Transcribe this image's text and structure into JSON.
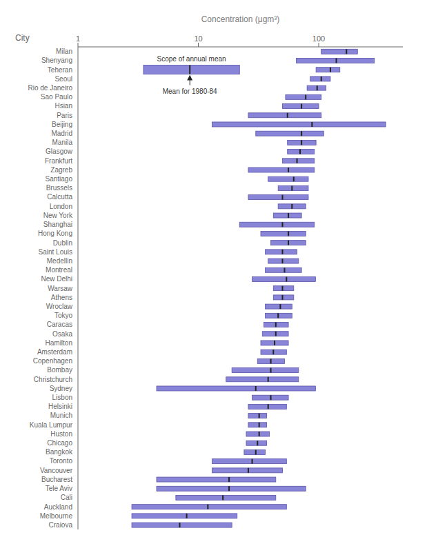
{
  "chart_data": {
    "type": "bar",
    "orientation": "horizontal",
    "xlabel": "Concentration (μgm³)",
    "ylabel": "City",
    "categories": [
      "Milan",
      "Shenyang",
      "Teheran",
      "Seoul",
      "Rio de Janeiro",
      "Sao Paulo",
      "Hsian",
      "Paris",
      "Beijing",
      "Madrid",
      "Manila",
      "Glasgow",
      "Frankfurt",
      "Zagreb",
      "Santiago",
      "Brussels",
      "Calcutta",
      "London",
      "New York",
      "Shanghai",
      "Hong Kong",
      "Dublin",
      "Saint Louis",
      "Medellin",
      "Montreal",
      "New Delhi",
      "Warsaw",
      "Athens",
      "Wroclaw",
      "Tokyo",
      "Caracas",
      "Osaka",
      "Hamilton",
      "Amsterdam",
      "Copenhagen",
      "Bombay",
      "Christchurch",
      "Sydney",
      "Lisbon",
      "Helsinki",
      "Munich",
      "Kuala Lumpur",
      "Huston",
      "Chicago",
      "Bangkok",
      "Toronto",
      "Vancouver",
      "Bucharest",
      "Tele Aviv",
      "Cali",
      "Auckland",
      "Melbourne",
      "Craiova"
    ],
    "values": [
      [
        105,
        210
      ],
      [
        65,
        290
      ],
      [
        95,
        150
      ],
      [
        85,
        125
      ],
      [
        80,
        115
      ],
      [
        53,
        105
      ],
      [
        50,
        100
      ],
      [
        26,
        105
      ],
      [
        13,
        360
      ],
      [
        30,
        110
      ],
      [
        55,
        95
      ],
      [
        55,
        92
      ],
      [
        50,
        92
      ],
      [
        26,
        92
      ],
      [
        38,
        82
      ],
      [
        46,
        82
      ],
      [
        26,
        82
      ],
      [
        46,
        78
      ],
      [
        42,
        72
      ],
      [
        22,
        92
      ],
      [
        33,
        78
      ],
      [
        40,
        78
      ],
      [
        36,
        66
      ],
      [
        38,
        68
      ],
      [
        36,
        72
      ],
      [
        28,
        94
      ],
      [
        42,
        62
      ],
      [
        42,
        62
      ],
      [
        36,
        60
      ],
      [
        36,
        60
      ],
      [
        35,
        56
      ],
      [
        34,
        56
      ],
      [
        33,
        56
      ],
      [
        33,
        54
      ],
      [
        31,
        52
      ],
      [
        19,
        68
      ],
      [
        17,
        68
      ],
      [
        4.5,
        94
      ],
      [
        28,
        56
      ],
      [
        26,
        54
      ],
      [
        26,
        37
      ],
      [
        26,
        37
      ],
      [
        25,
        39
      ],
      [
        25,
        37
      ],
      [
        24,
        36
      ],
      [
        13,
        54
      ],
      [
        13,
        50
      ],
      [
        4.5,
        44
      ],
      [
        4.5,
        78
      ],
      [
        6.5,
        44
      ],
      [
        2.8,
        54
      ],
      [
        2.8,
        21
      ],
      [
        2.8,
        19
      ]
    ],
    "means": [
      170,
      140,
      125,
      105,
      97,
      78,
      72,
      55,
      88,
      72,
      72,
      70,
      66,
      56,
      62,
      60,
      50,
      60,
      56,
      50,
      56,
      56,
      50,
      50,
      52,
      54,
      50,
      50,
      48,
      46,
      44,
      44,
      43,
      42,
      40,
      40,
      38,
      30,
      40,
      38,
      32,
      32,
      32,
      31,
      30,
      28,
      26,
      18,
      18,
      16,
      12,
      8,
      7
    ],
    "xlim": [
      1,
      500
    ],
    "xticks": [
      1,
      10,
      100
    ],
    "log": "x",
    "grid": false,
    "color": "#8884d8",
    "annotation": {
      "lo": 3.5,
      "hi": 22,
      "mean": 8.5,
      "label": "Scope of annual mean",
      "mean_label": "Mean for 1980-84"
    }
  }
}
